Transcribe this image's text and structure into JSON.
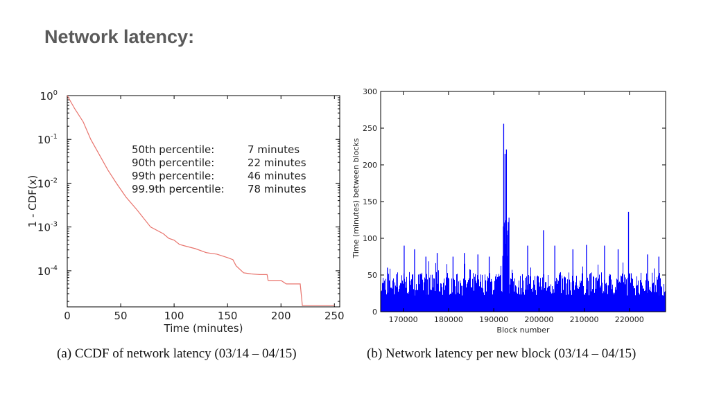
{
  "slide": {
    "title": "Network latency:"
  },
  "captions": {
    "a": "(a) CCDF of network latency (03/14 – 04/15)",
    "b": "(b) Network latency per new block (03/14 – 04/15)"
  },
  "colors": {
    "ccdf_line": "#e8736c",
    "bar_series": "#0000ff",
    "title_text": "#5a5a5a"
  },
  "chart_data": [
    {
      "type": "line",
      "ylog": true,
      "xlabel": "Time (minutes)",
      "ylabel": "1 - CDF(x)",
      "xlim": [
        0,
        255
      ],
      "ylim": [
        1.5e-05,
        1
      ],
      "x_ticks": [
        0,
        50,
        100,
        150,
        200,
        250
      ],
      "y_ticks": [
        {
          "base": "10",
          "exp": "0",
          "value": 1
        },
        {
          "base": "10",
          "exp": "-1",
          "value": 0.1
        },
        {
          "base": "10",
          "exp": "-2",
          "value": 0.01
        },
        {
          "base": "10",
          "exp": "-3",
          "value": 0.001
        },
        {
          "base": "10",
          "exp": "-4",
          "value": 0.0001
        }
      ],
      "annotations": [
        {
          "label": "50th percentile:",
          "value": "7 minutes"
        },
        {
          "label": "90th percentile:",
          "value": "22 minutes"
        },
        {
          "label": "99th percentile:",
          "value": "46 minutes"
        },
        {
          "label": "99.9th percentile:",
          "value": "78 minutes"
        }
      ],
      "series": [
        {
          "x": [
            0,
            7,
            15,
            22,
            30,
            38,
            46,
            55,
            65,
            78,
            90,
            95,
            100,
            105,
            110,
            120,
            130,
            140,
            150,
            155,
            158,
            165,
            172,
            180,
            187,
            188,
            200,
            205,
            210,
            218,
            220,
            250
          ],
          "y": [
            1,
            0.5,
            0.25,
            0.1,
            0.045,
            0.02,
            0.01,
            0.0048,
            0.0025,
            0.001,
            0.0007,
            0.00055,
            0.0005,
            0.0004,
            0.00037,
            0.00032,
            0.00026,
            0.00024,
            0.0002,
            0.00018,
            0.00013,
            9e-05,
            8.5e-05,
            8.2e-05,
            8.2e-05,
            6e-05,
            6e-05,
            5e-05,
            5e-05,
            5e-05,
            1.6e-05,
            1.6e-05
          ]
        }
      ]
    },
    {
      "type": "bar",
      "xlabel": "Block number",
      "ylabel": "Time (minutes) between blocks",
      "xlim": [
        165000,
        228000
      ],
      "ylim": [
        0,
        300
      ],
      "x_ticks": [
        170000,
        180000,
        190000,
        200000,
        210000,
        220000
      ],
      "y_ticks": [
        0,
        50,
        100,
        150,
        200,
        250,
        300
      ],
      "spikes": [
        {
          "block": 166500,
          "value": 60
        },
        {
          "block": 170200,
          "value": 90
        },
        {
          "block": 172500,
          "value": 85
        },
        {
          "block": 175000,
          "value": 75
        },
        {
          "block": 177500,
          "value": 80
        },
        {
          "block": 181000,
          "value": 75
        },
        {
          "block": 183500,
          "value": 80
        },
        {
          "block": 186500,
          "value": 78
        },
        {
          "block": 189000,
          "value": 75
        },
        {
          "block": 192200,
          "value": 256
        },
        {
          "block": 192500,
          "value": 215
        },
        {
          "block": 192800,
          "value": 221
        },
        {
          "block": 193200,
          "value": 122
        },
        {
          "block": 197500,
          "value": 90
        },
        {
          "block": 201000,
          "value": 111
        },
        {
          "block": 203500,
          "value": 90
        },
        {
          "block": 207500,
          "value": 85
        },
        {
          "block": 210500,
          "value": 91
        },
        {
          "block": 214500,
          "value": 90
        },
        {
          "block": 217500,
          "value": 85
        },
        {
          "block": 219800,
          "value": 136
        },
        {
          "block": 224000,
          "value": 78
        },
        {
          "block": 226500,
          "value": 75
        }
      ],
      "baseline_level": 40
    }
  ]
}
